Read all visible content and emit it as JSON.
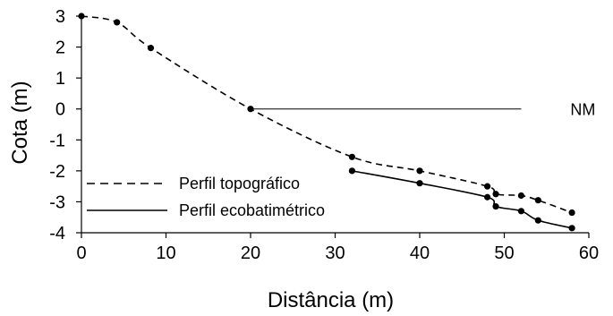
{
  "chart_data": {
    "type": "line",
    "title": "",
    "xlabel": "Distância (m)",
    "ylabel": "Cota (m)",
    "xlim": [
      0,
      60
    ],
    "ylim": [
      -4,
      3
    ],
    "xticks": [
      0,
      10,
      20,
      30,
      40,
      50,
      60
    ],
    "yticks": [
      3,
      2,
      1,
      0,
      -1,
      -2,
      -3,
      -4
    ],
    "grid": false,
    "legend_position": "lower-left",
    "series": [
      {
        "name": "Perfil topográfico",
        "style": "dashed",
        "color": "#000000",
        "x": [
          0,
          4.2,
          8.2,
          20,
          32,
          40,
          48,
          49,
          52,
          54,
          58
        ],
        "y": [
          3.0,
          2.8,
          1.97,
          0.0,
          -1.55,
          -2.0,
          -2.5,
          -2.75,
          -2.8,
          -2.95,
          -3.35
        ]
      },
      {
        "name": "Perfil ecobatimétrico",
        "style": "solid",
        "color": "#000000",
        "x": [
          32,
          40,
          48,
          49,
          52,
          54,
          58
        ],
        "y": [
          -2.0,
          -2.4,
          -2.85,
          -3.15,
          -3.3,
          -3.6,
          -3.85
        ]
      }
    ],
    "reference_line": {
      "label": "NM",
      "y": 0,
      "x_start": 20,
      "x_end": 52
    }
  }
}
